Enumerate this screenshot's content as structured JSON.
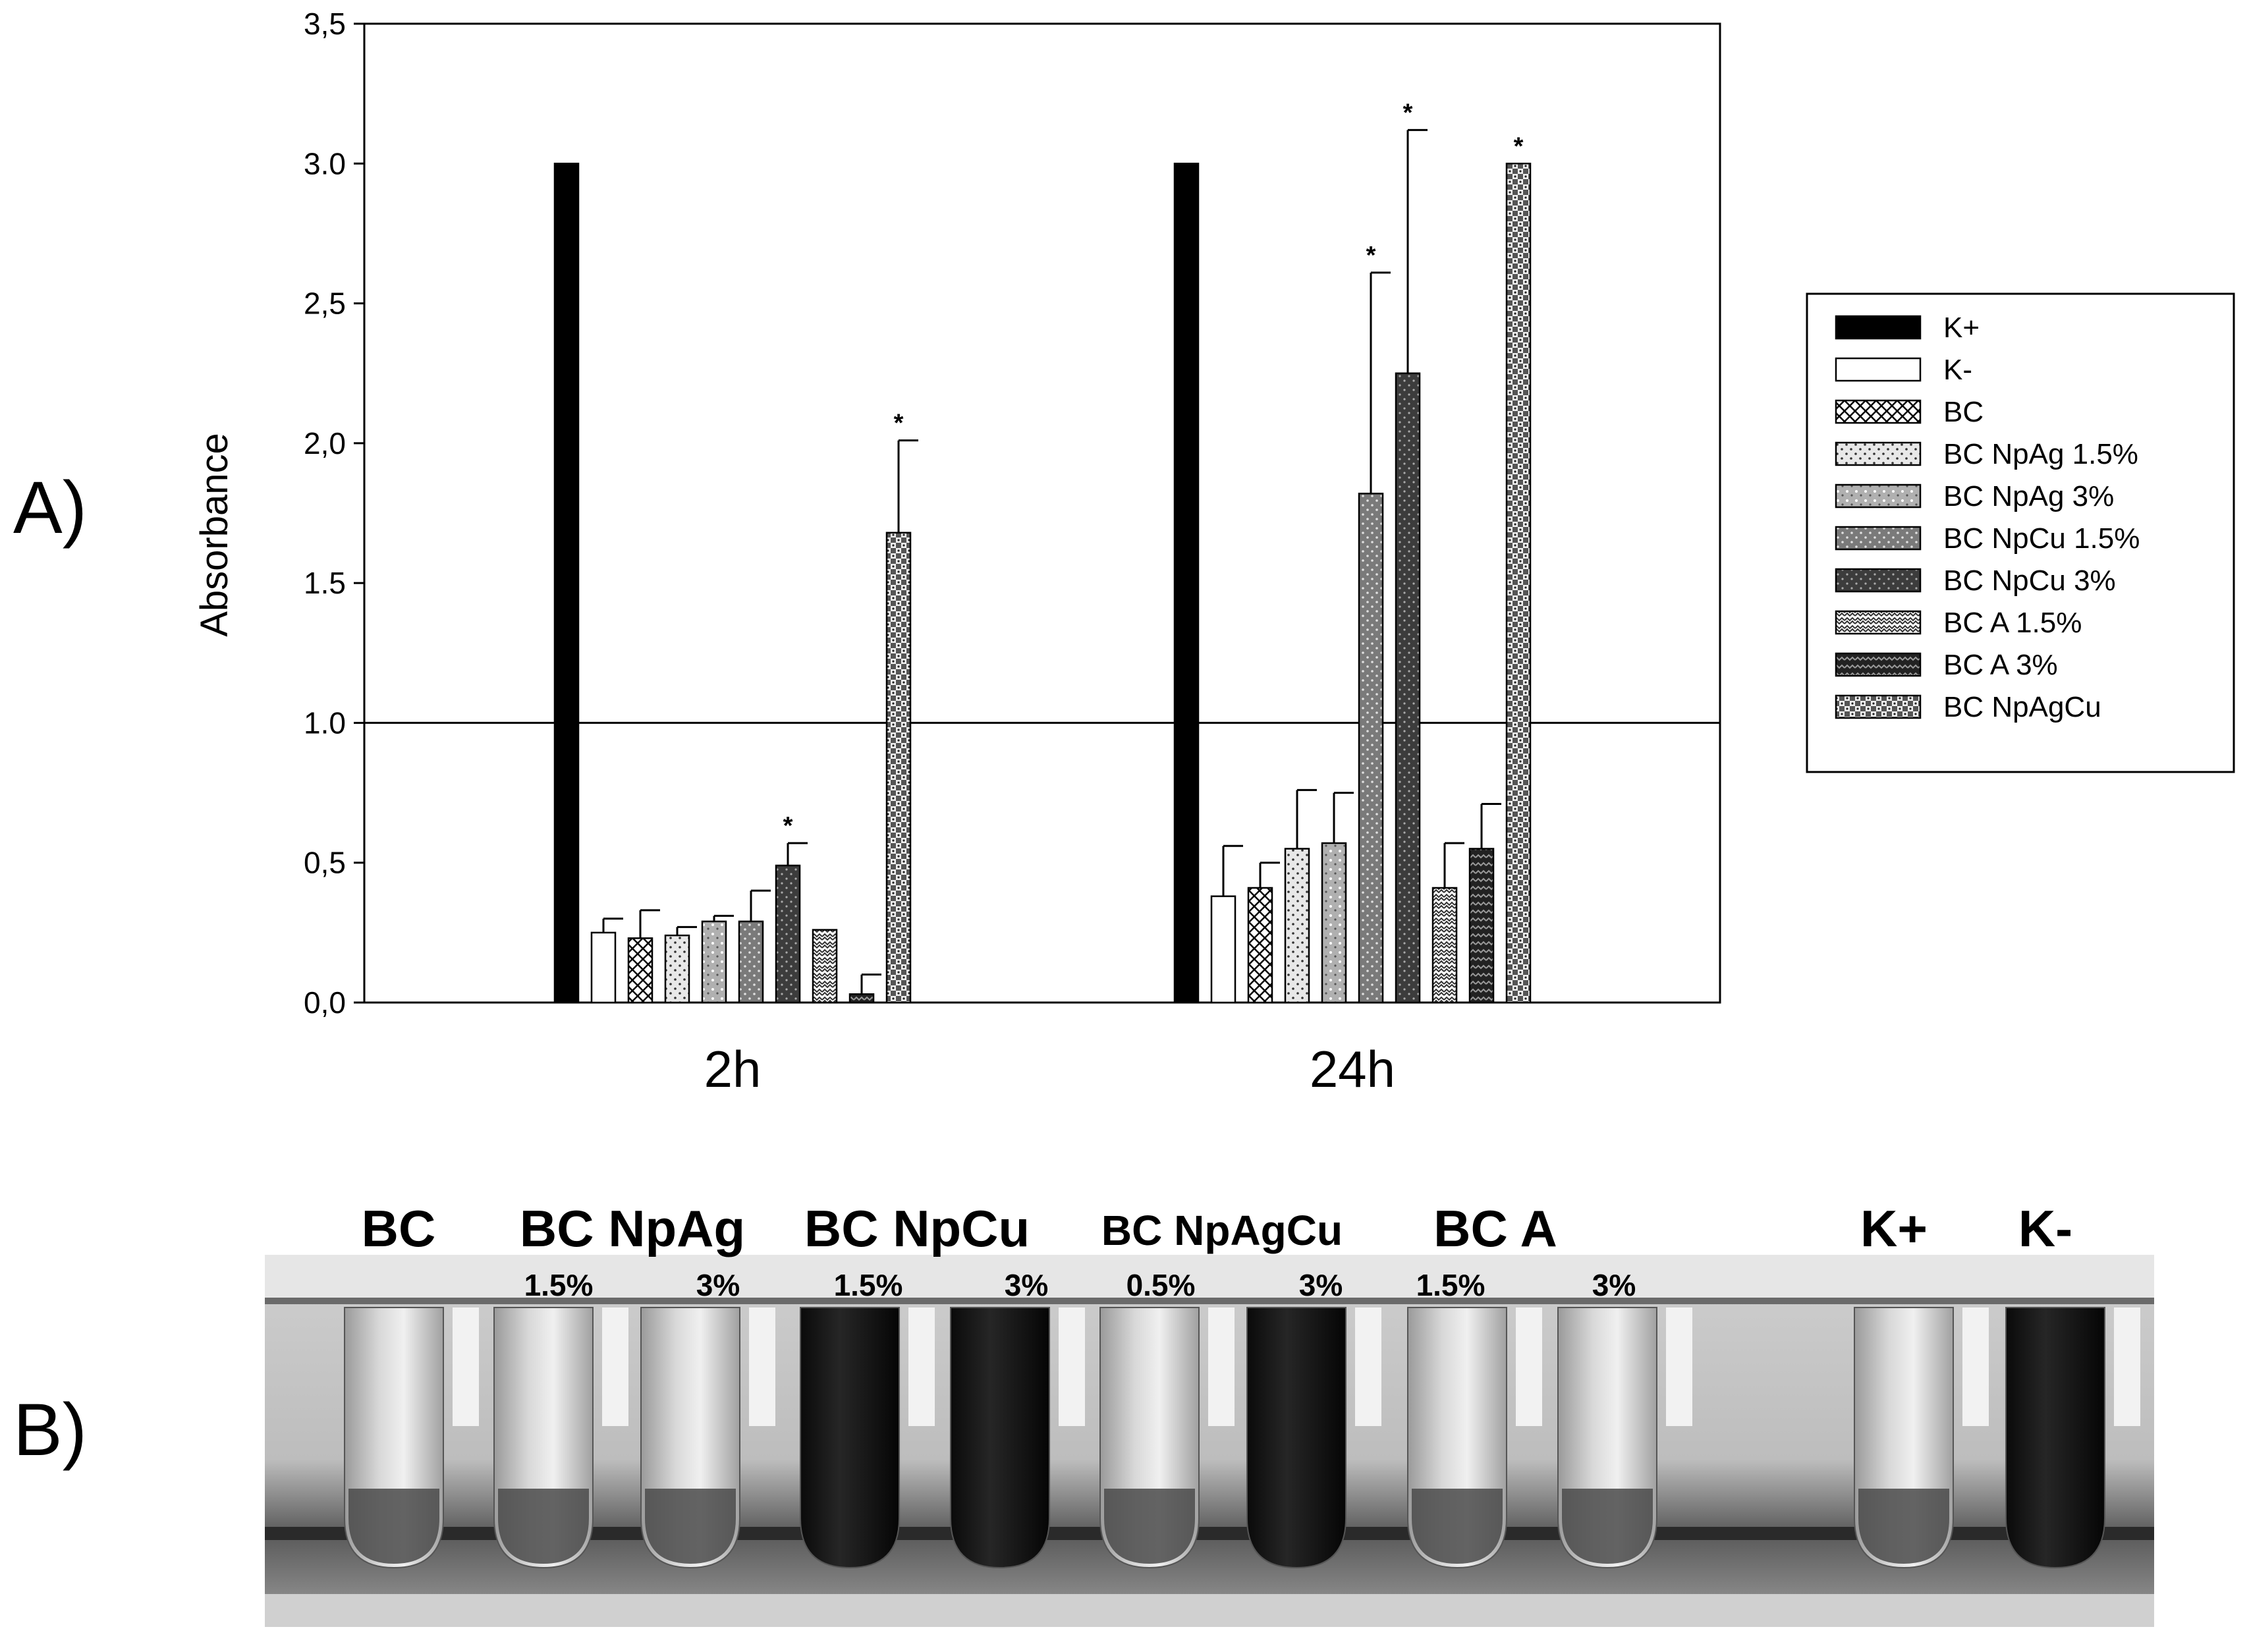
{
  "panels": {
    "a_label": "A)",
    "b_label": "B)"
  },
  "chart_data": {
    "type": "bar",
    "ylabel": "Absorbance",
    "ylim": [
      0,
      3.5
    ],
    "y_ticks": [
      "0,0",
      "0,5",
      "1.0",
      "1.5",
      "2,0",
      "2,5",
      "3.0",
      "3,5"
    ],
    "y_tick_values": [
      0,
      0.5,
      1.0,
      1.5,
      2.0,
      2.5,
      3.0,
      3.5
    ],
    "reference_line": 1.0,
    "categories": [
      "2h",
      "24h"
    ],
    "legend_position": "right",
    "series": [
      {
        "name": "K+",
        "values": [
          3.0,
          3.0
        ],
        "errors": [
          0,
          0
        ],
        "significant": [
          false,
          false
        ],
        "pattern": "solid-black"
      },
      {
        "name": "K-",
        "values": [
          0.25,
          0.38
        ],
        "errors": [
          0.05,
          0.18
        ],
        "significant": [
          false,
          false
        ],
        "pattern": "white"
      },
      {
        "name": "BC",
        "values": [
          0.23,
          0.41
        ],
        "errors": [
          0.1,
          0.09
        ],
        "significant": [
          false,
          false
        ],
        "pattern": "crosshatch"
      },
      {
        "name": "BC NpAg 1.5%",
        "values": [
          0.24,
          0.55
        ],
        "errors": [
          0.03,
          0.21
        ],
        "significant": [
          false,
          false
        ],
        "pattern": "light-dots"
      },
      {
        "name": "BC NpAg 3%",
        "values": [
          0.29,
          0.57
        ],
        "errors": [
          0.02,
          0.18
        ],
        "significant": [
          false,
          false
        ],
        "pattern": "gray-speckle"
      },
      {
        "name": "BC NpCu 1.5%",
        "values": [
          0.29,
          1.82
        ],
        "errors": [
          0.11,
          0.79
        ],
        "significant": [
          false,
          true
        ],
        "pattern": "mid-dots"
      },
      {
        "name": "BC NpCu 3%",
        "values": [
          0.49,
          2.25
        ],
        "errors": [
          0.08,
          0.87
        ],
        "significant": [
          true,
          true
        ],
        "pattern": "dark-dots"
      },
      {
        "name": "BC A 1.5%",
        "values": [
          0.26,
          0.41
        ],
        "errors": [
          0.0,
          0.16
        ],
        "significant": [
          false,
          false
        ],
        "pattern": "zigzag-light"
      },
      {
        "name": "BC A 3%",
        "values": [
          0.03,
          0.55
        ],
        "errors": [
          0.07,
          0.16
        ],
        "significant": [
          false,
          false
        ],
        "pattern": "zigzag-dark"
      },
      {
        "name": "BC NpAgCu",
        "values": [
          1.68,
          3.0
        ],
        "errors": [
          0.33,
          0.0
        ],
        "significant": [
          true,
          true
        ],
        "pattern": "checker"
      }
    ],
    "significance_marker": "*"
  },
  "photo": {
    "group_labels": [
      "BC",
      "BC NpAg",
      "BC NpCu",
      "BC NpAgCu",
      "BC A",
      "K+",
      "K-"
    ],
    "concentration_labels": [
      "1.5%",
      "3%",
      "1.5%",
      "3%",
      "0.5%",
      "3%",
      "1.5%",
      "3%"
    ],
    "tube_contents": [
      "light",
      "light",
      "light",
      "dark",
      "dark",
      "light",
      "dark",
      "light",
      "light",
      "light",
      "dark"
    ]
  }
}
